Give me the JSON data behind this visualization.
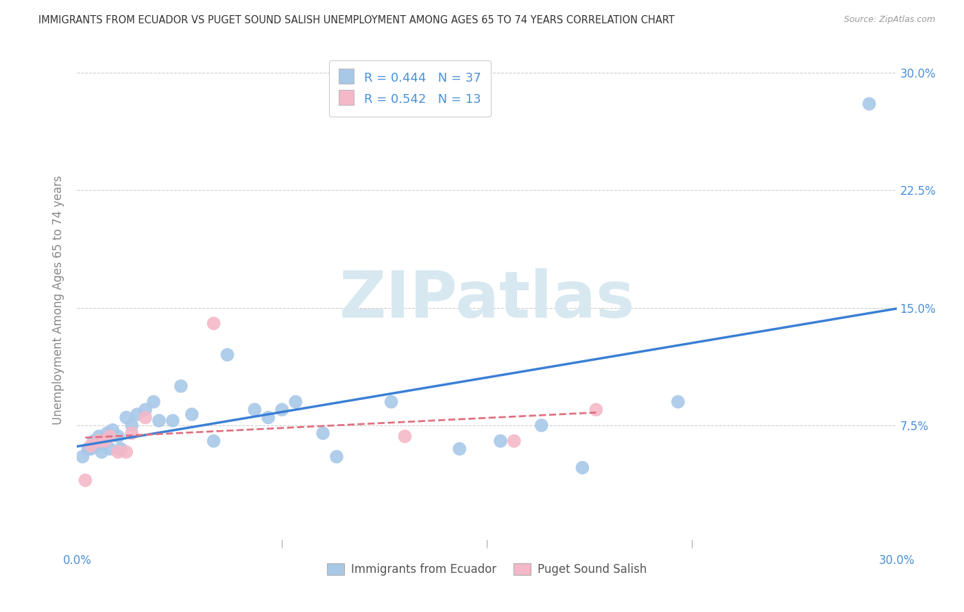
{
  "title": "IMMIGRANTS FROM ECUADOR VS PUGET SOUND SALISH UNEMPLOYMENT AMONG AGES 65 TO 74 YEARS CORRELATION CHART",
  "source": "Source: ZipAtlas.com",
  "ylabel": "Unemployment Among Ages 65 to 74 years",
  "xlim": [
    0.0,
    0.3
  ],
  "ylim": [
    -0.005,
    0.315
  ],
  "xticks": [
    0.0,
    0.075,
    0.15,
    0.225,
    0.3
  ],
  "xticklabels": [
    "0.0%",
    "",
    "",
    "",
    "30.0%"
  ],
  "yticks": [
    0.0,
    0.075,
    0.15,
    0.225,
    0.3
  ],
  "yticklabels": [
    "",
    "7.5%",
    "15.0%",
    "22.5%",
    "30.0%"
  ],
  "blue_R": 0.444,
  "blue_N": 37,
  "pink_R": 0.542,
  "pink_N": 13,
  "blue_color": "#a8c8e8",
  "pink_color": "#f4b8c8",
  "blue_line_color": "#3a7fd5",
  "pink_line_color": "#e07080",
  "watermark_text": "ZIPatlas",
  "blue_scatter_x": [
    0.002,
    0.004,
    0.005,
    0.006,
    0.007,
    0.008,
    0.009,
    0.01,
    0.011,
    0.012,
    0.013,
    0.015,
    0.016,
    0.018,
    0.02,
    0.022,
    0.025,
    0.028,
    0.03,
    0.035,
    0.038,
    0.042,
    0.05,
    0.055,
    0.065,
    0.07,
    0.075,
    0.08,
    0.09,
    0.095,
    0.115,
    0.14,
    0.155,
    0.17,
    0.185,
    0.22,
    0.29
  ],
  "blue_scatter_y": [
    0.055,
    0.06,
    0.06,
    0.065,
    0.062,
    0.068,
    0.058,
    0.065,
    0.07,
    0.06,
    0.072,
    0.068,
    0.06,
    0.08,
    0.075,
    0.082,
    0.085,
    0.09,
    0.078,
    0.078,
    0.1,
    0.082,
    0.065,
    0.12,
    0.085,
    0.08,
    0.085,
    0.09,
    0.07,
    0.055,
    0.09,
    0.06,
    0.065,
    0.075,
    0.048,
    0.09,
    0.28
  ],
  "pink_scatter_x": [
    0.003,
    0.005,
    0.008,
    0.01,
    0.012,
    0.015,
    0.018,
    0.02,
    0.025,
    0.05,
    0.12,
    0.16,
    0.19
  ],
  "pink_scatter_y": [
    0.04,
    0.062,
    0.065,
    0.065,
    0.068,
    0.058,
    0.058,
    0.07,
    0.08,
    0.14,
    0.068,
    0.065,
    0.085
  ],
  "background_color": "#ffffff",
  "grid_color": "#cccccc",
  "legend_label_color": "#4a90d9",
  "tick_color": "#4a90d9",
  "axis_label_color": "#888888"
}
